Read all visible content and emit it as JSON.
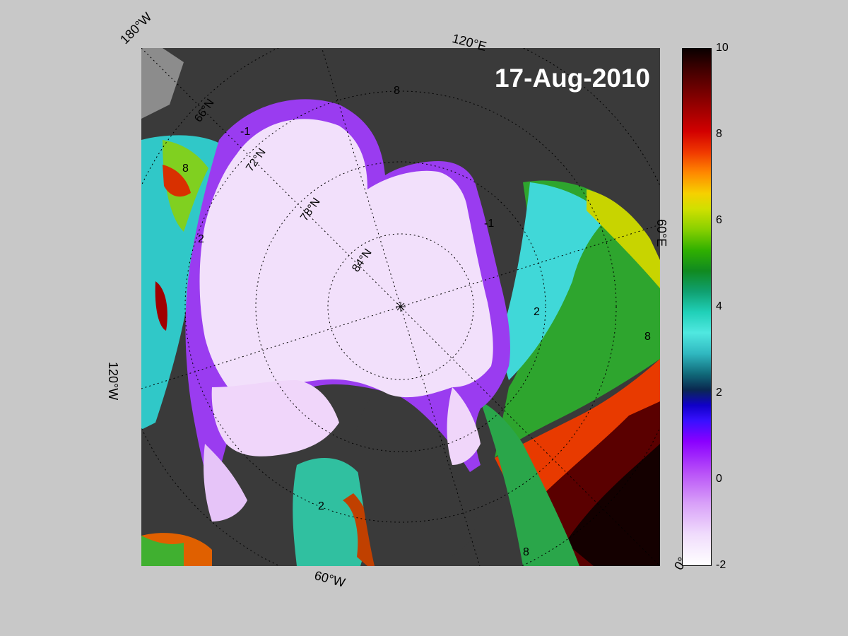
{
  "map": {
    "date": "17-Aug-2010",
    "projection": "polar stereographic, North Pole centered",
    "longitude_labels": [
      "180°W",
      "120°E",
      "60°E",
      "0°",
      "60°W",
      "120°W"
    ],
    "latitude_labels": [
      "66°N",
      "72°N",
      "78°N",
      "84°N"
    ],
    "contour_labels": [
      "-1",
      "2",
      "8"
    ],
    "colors": {
      "land": "#3a3a3a",
      "outside": "#8c8c8c",
      "ice_cold": "#f2e0fb",
      "ice_edge": "#9a3cf0"
    }
  },
  "colorbar": {
    "ticks": [
      "10",
      "8",
      "6",
      "4",
      "2",
      "0",
      "-2"
    ],
    "min": -2,
    "max": 10,
    "label": ""
  }
}
